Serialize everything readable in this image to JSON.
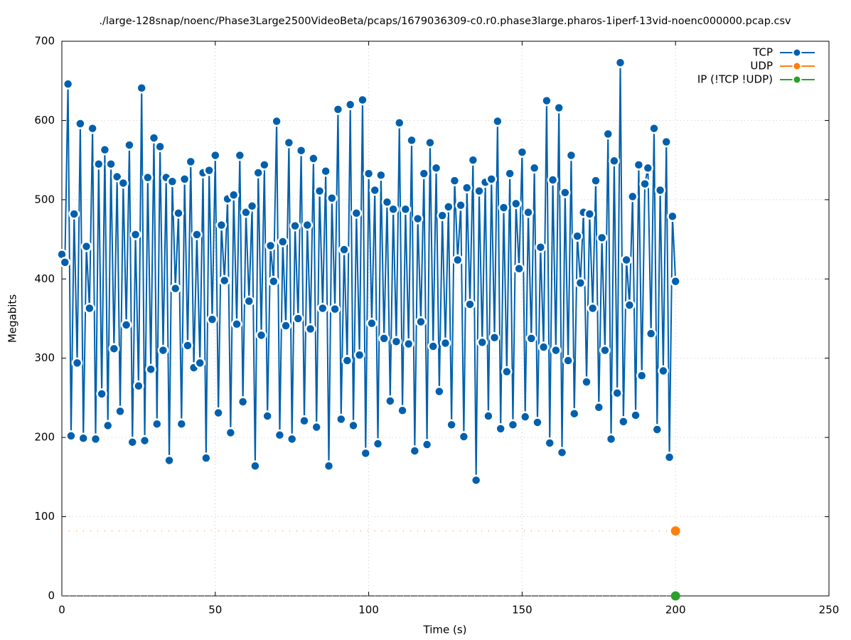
{
  "chart_data": {
    "type": "line",
    "title": "./large-128snap/noenc/Phase3Large2500VideoBeta/pcaps/1679036309-c0.r0.phase3large.pharos-1iperf-13vid-noenc000000.pcap.csv",
    "x_label": "Time (s)",
    "y_label": "Megabits",
    "x": [
      0,
      1,
      2,
      3,
      4,
      5,
      6,
      7,
      8,
      9,
      10,
      11,
      12,
      13,
      14,
      15,
      16,
      17,
      18,
      19,
      20,
      21,
      22,
      23,
      24,
      25,
      26,
      27,
      28,
      29,
      30,
      31,
      32,
      33,
      34,
      35,
      36,
      37,
      38,
      39,
      40,
      41,
      42,
      43,
      44,
      45,
      46,
      47,
      48,
      49,
      50,
      51,
      52,
      53,
      54,
      55,
      56,
      57,
      58,
      59,
      60,
      61,
      62,
      63,
      64,
      65,
      66,
      67,
      68,
      69,
      70,
      71,
      72,
      73,
      74,
      75,
      76,
      77,
      78,
      79,
      80,
      81,
      82,
      83,
      84,
      85,
      86,
      87,
      88,
      89,
      90,
      91,
      92,
      93,
      94,
      95,
      96,
      97,
      98,
      99,
      100,
      101,
      102,
      103,
      104,
      105,
      106,
      107,
      108,
      109,
      110,
      111,
      112,
      113,
      114,
      115,
      116,
      117,
      118,
      119,
      120,
      121,
      122,
      123,
      124,
      125,
      126,
      127,
      128,
      129,
      130,
      131,
      132,
      133,
      134,
      135,
      136,
      137,
      138,
      139,
      140,
      141,
      142,
      143,
      144,
      145,
      146,
      147,
      148,
      149,
      150,
      151,
      152,
      153,
      154,
      155,
      156,
      157,
      158,
      159,
      160,
      161,
      162,
      163,
      164,
      165,
      166,
      167,
      168,
      169,
      170,
      171,
      172,
      173,
      174,
      175,
      176,
      177,
      178,
      179,
      180,
      181,
      182,
      183,
      184,
      185,
      186,
      187,
      188,
      189,
      190,
      191,
      192,
      193,
      194,
      195,
      196,
      197,
      198,
      199,
      200
    ],
    "series": [
      {
        "name": "TCP",
        "color": "#0060ad",
        "markers": "all",
        "values": [
          431,
          421,
          646,
          202,
          482,
          294,
          596,
          199,
          441,
          363,
          590,
          198,
          545,
          255,
          563,
          215,
          545,
          312,
          529,
          233,
          521,
          342,
          569,
          194,
          456,
          265,
          641,
          196,
          528,
          286,
          578,
          217,
          567,
          310,
          528,
          171,
          523,
          388,
          483,
          217,
          526,
          316,
          548,
          288,
          456,
          294,
          534,
          174,
          537,
          349,
          556,
          231,
          468,
          398,
          501,
          206,
          506,
          343,
          556,
          245,
          484,
          372,
          492,
          164,
          534,
          329,
          544,
          227,
          442,
          397,
          599,
          203,
          447,
          341,
          572,
          198,
          467,
          350,
          562,
          221,
          468,
          337,
          552,
          213,
          511,
          363,
          536,
          164,
          502,
          362,
          614,
          223,
          437,
          297,
          620,
          215,
          483,
          304,
          626,
          180,
          533,
          344,
          512,
          192,
          531,
          325,
          497,
          246,
          488,
          321,
          597,
          234,
          488,
          318,
          575,
          183,
          476,
          346,
          533,
          191,
          572,
          315,
          540,
          258,
          480,
          319,
          491,
          216,
          524,
          424,
          493,
          201,
          515,
          368,
          550,
          146,
          511,
          320,
          522,
          227,
          526,
          326,
          599,
          211,
          490,
          283,
          533,
          216,
          495,
          413,
          560,
          226,
          484,
          325,
          540,
          219,
          440,
          314,
          625,
          193,
          525,
          310,
          616,
          181,
          509,
          297,
          556,
          230,
          454,
          395,
          484,
          270,
          482,
          363,
          524,
          238,
          452,
          310,
          583,
          198,
          549,
          256,
          673,
          220,
          424,
          367,
          504,
          228,
          544,
          278,
          520,
          540,
          331,
          590,
          210,
          512,
          284,
          573,
          175,
          479,
          397
        ]
      },
      {
        "name": "UDP",
        "color": "#ff7f0e",
        "markers": "last",
        "values": [
          82,
          82,
          82,
          82,
          82,
          82,
          82,
          82,
          82,
          82,
          82,
          82,
          82,
          82,
          82,
          82,
          82,
          82,
          82,
          82,
          82,
          82,
          82,
          82,
          82,
          82,
          82,
          82,
          82,
          82,
          82,
          82,
          82,
          82,
          82,
          82,
          82,
          82,
          82,
          82,
          82,
          82,
          82,
          82,
          82,
          82,
          82,
          82,
          82,
          82,
          82,
          82,
          82,
          82,
          82,
          82,
          82,
          82,
          82,
          82,
          82,
          82,
          82,
          82,
          82,
          82,
          82,
          82,
          82,
          82,
          82,
          82,
          82,
          82,
          82,
          82,
          82,
          82,
          82,
          82,
          82,
          82,
          82,
          82,
          82,
          82,
          82,
          82,
          82,
          82,
          82,
          82,
          82,
          82,
          82,
          82,
          82,
          82,
          82,
          82,
          82,
          82,
          82,
          82,
          82,
          82,
          82,
          82,
          82,
          82,
          82,
          82,
          82,
          82,
          82,
          82,
          82,
          82,
          82,
          82,
          82,
          82,
          82,
          82,
          82,
          82,
          82,
          82,
          82,
          82,
          82,
          82,
          82,
          82,
          82,
          82,
          82,
          82,
          82,
          82,
          82,
          82,
          82,
          82,
          82,
          82,
          82,
          82,
          82,
          82,
          82,
          82,
          82,
          82,
          82,
          82,
          82,
          82,
          82,
          82,
          82,
          82,
          82,
          82,
          82,
          82,
          82,
          82,
          82,
          82,
          82,
          82,
          82,
          82,
          82,
          82,
          82,
          82,
          82,
          82,
          82,
          82,
          82,
          82,
          82,
          82,
          82,
          82,
          82,
          82,
          82,
          82,
          82,
          82,
          82,
          82,
          82,
          82,
          82,
          82,
          82
        ]
      },
      {
        "name": "IP (!TCP  !UDP)",
        "color": "#2ca02c",
        "markers": "last",
        "values": [
          0,
          0,
          0,
          0,
          0,
          0,
          0,
          0,
          0,
          0,
          0,
          0,
          0,
          0,
          0,
          0,
          0,
          0,
          0,
          0,
          0,
          0,
          0,
          0,
          0,
          0,
          0,
          0,
          0,
          0,
          0,
          0,
          0,
          0,
          0,
          0,
          0,
          0,
          0,
          0,
          0,
          0,
          0,
          0,
          0,
          0,
          0,
          0,
          0,
          0,
          0,
          0,
          0,
          0,
          0,
          0,
          0,
          0,
          0,
          0,
          0,
          0,
          0,
          0,
          0,
          0,
          0,
          0,
          0,
          0,
          0,
          0,
          0,
          0,
          0,
          0,
          0,
          0,
          0,
          0,
          0,
          0,
          0,
          0,
          0,
          0,
          0,
          0,
          0,
          0,
          0,
          0,
          0,
          0,
          0,
          0,
          0,
          0,
          0,
          0,
          0,
          0,
          0,
          0,
          0,
          0,
          0,
          0,
          0,
          0,
          0,
          0,
          0,
          0,
          0,
          0,
          0,
          0,
          0,
          0,
          0,
          0,
          0,
          0,
          0,
          0,
          0,
          0,
          0,
          0,
          0,
          0,
          0,
          0,
          0,
          0,
          0,
          0,
          0,
          0,
          0,
          0,
          0,
          0,
          0,
          0,
          0,
          0,
          0,
          0,
          0,
          0,
          0,
          0,
          0,
          0,
          0,
          0,
          0,
          0,
          0,
          0,
          0,
          0,
          0,
          0,
          0,
          0,
          0,
          0,
          0,
          0,
          0,
          0,
          0,
          0,
          0,
          0,
          0,
          0,
          0,
          0,
          0,
          0,
          0,
          0,
          0,
          0,
          0,
          0,
          0,
          0,
          0,
          0,
          0,
          0,
          0,
          0,
          0,
          0,
          0
        ]
      }
    ],
    "xlim": [
      0,
      250
    ],
    "xticks": [
      0,
      50,
      100,
      150,
      200,
      250
    ],
    "ylim": [
      0,
      700
    ],
    "yticks": [
      0,
      100,
      200,
      300,
      400,
      500,
      600,
      700
    ],
    "grid": true,
    "legend": "top-right"
  }
}
